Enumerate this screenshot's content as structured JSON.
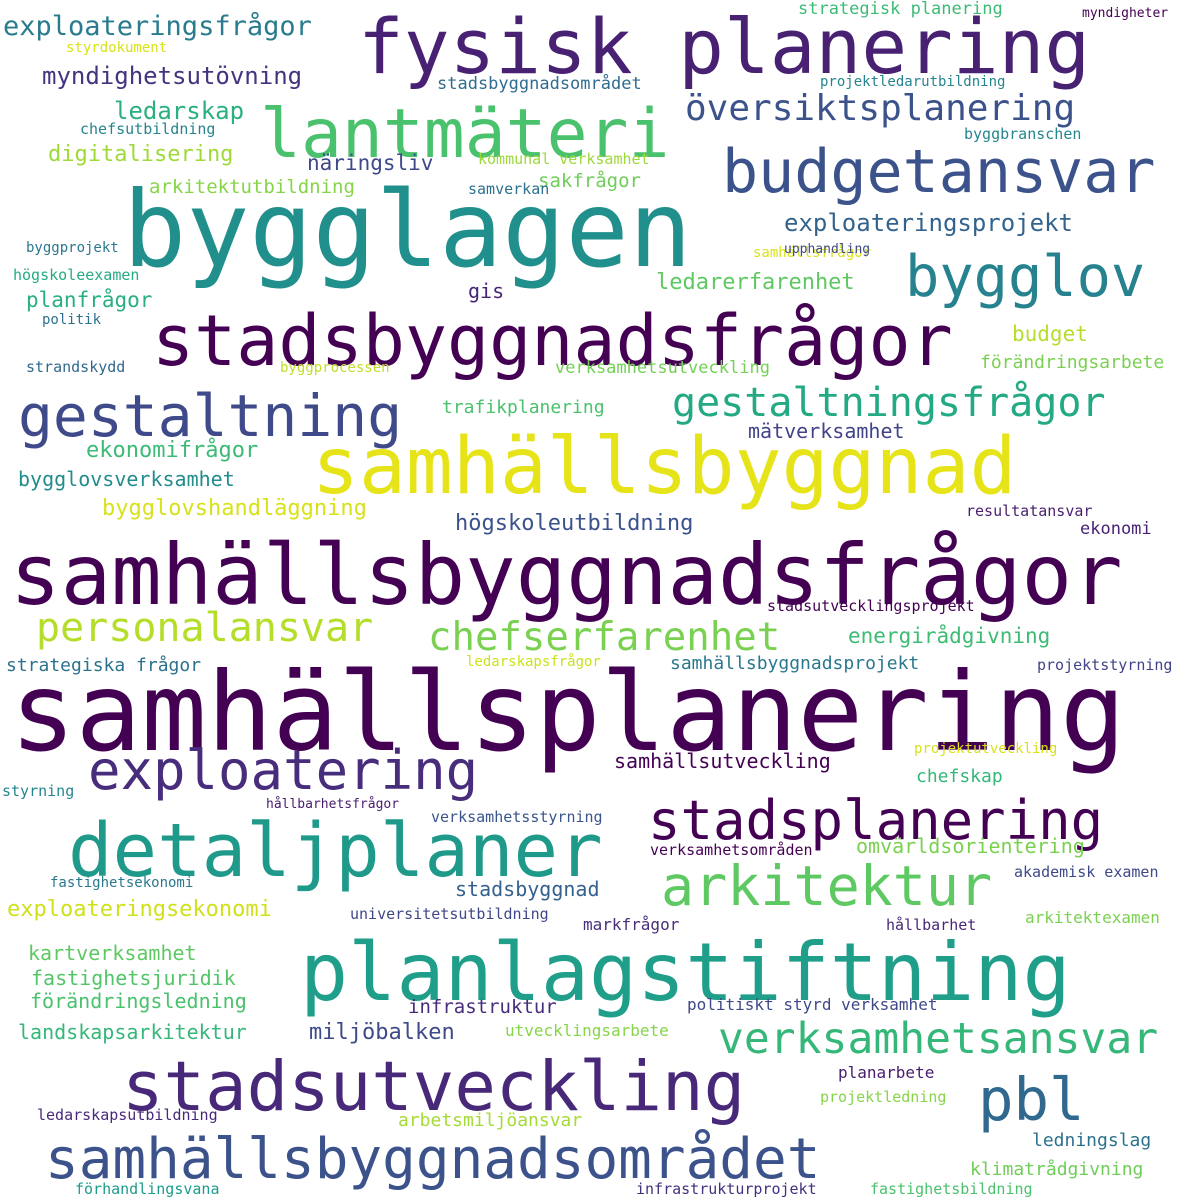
{
  "words": [
    {
      "text": "samhällsplanering",
      "color": "#440154"
    },
    {
      "text": "samhällsbyggnadsfrågor",
      "color": "#440154"
    },
    {
      "text": "bygglagen",
      "color": "#21908c"
    },
    {
      "text": "samhällsbyggnad",
      "color": "#e6e419"
    },
    {
      "text": "planlagstiftning",
      "color": "#1f9e89"
    },
    {
      "text": "fysisk planering",
      "color": "#482173"
    },
    {
      "text": "stadsbyggnadsfrågor",
      "color": "#440154"
    },
    {
      "text": "stadsutveckling",
      "color": "#482878"
    },
    {
      "text": "detaljplaner",
      "color": "#1f9a8a"
    },
    {
      "text": "lantmäteri",
      "color": "#4ac16d"
    },
    {
      "text": "samhällsbyggnadsområdet",
      "color": "#3b528b"
    },
    {
      "text": "budgetansvar",
      "color": "#3b528b"
    },
    {
      "text": "gestaltning",
      "color": "#3e4a89"
    },
    {
      "text": "exploatering",
      "color": "#472d7b"
    },
    {
      "text": "stadsplanering",
      "color": "#440154"
    },
    {
      "text": "arkitektur",
      "color": "#5ec962"
    },
    {
      "text": "bygglov",
      "color": "#26828e"
    },
    {
      "text": "pbl",
      "color": "#31688e"
    },
    {
      "text": "verksamhetsansvar",
      "color": "#35b779"
    },
    {
      "text": "gestaltningsfrågor",
      "color": "#23a983"
    },
    {
      "text": "personalansvar",
      "color": "#b5de2b"
    },
    {
      "text": "chefserfarenhet",
      "color": "#7ad151"
    },
    {
      "text": "översiktsplanering",
      "color": "#3b528b"
    },
    {
      "text": "exploateringsfrågor",
      "color": "#287c8e"
    },
    {
      "text": "myndighetsutövning",
      "color": "#46337e"
    },
    {
      "text": "exploateringsprojekt",
      "color": "#33638d"
    },
    {
      "text": "ledarskap",
      "color": "#2ab07f"
    },
    {
      "text": "digitalisering",
      "color": "#a0da39"
    },
    {
      "text": "näringsliv",
      "color": "#3e4989"
    },
    {
      "text": "arkitektutbildning",
      "color": "#86d549"
    },
    {
      "text": "sakfrågor",
      "color": "#6ece58"
    },
    {
      "text": "ledarerfarenhet",
      "color": "#5ec962"
    },
    {
      "text": "gis",
      "color": "#482475"
    },
    {
      "text": "planfrågor",
      "color": "#29af7f"
    },
    {
      "text": "budget",
      "color": "#b5de2b"
    },
    {
      "text": "förändringsarbete",
      "color": "#7ad151"
    },
    {
      "text": "verksamhetsutveckling",
      "color": "#73d056"
    },
    {
      "text": "trafikplanering",
      "color": "#4ac16d"
    },
    {
      "text": "ekonomifrågor",
      "color": "#3bbb75"
    },
    {
      "text": "mätverksamhet",
      "color": "#414487"
    },
    {
      "text": "bygglovsverksamhet",
      "color": "#228c8d"
    },
    {
      "text": "bygglovshandläggning",
      "color": "#d8e219"
    },
    {
      "text": "högskoleutbildning",
      "color": "#3b528b"
    },
    {
      "text": "resultatansvar",
      "color": "#481f70"
    },
    {
      "text": "ekonomi",
      "color": "#482374"
    },
    {
      "text": "stadsutvecklingsprojekt",
      "color": "#440154"
    },
    {
      "text": "energirådgivning",
      "color": "#3dbc74"
    },
    {
      "text": "strategiska frågor",
      "color": "#2c718e"
    },
    {
      "text": "samhällsbyggnadsprojekt",
      "color": "#2a788e"
    },
    {
      "text": "projektstyrning",
      "color": "#414487"
    },
    {
      "text": "samhällsutveckling",
      "color": "#440154"
    },
    {
      "text": "chefskap",
      "color": "#35b779"
    },
    {
      "text": "omvärldsorientering",
      "color": "#7ad151"
    },
    {
      "text": "stadsbyggnad",
      "color": "#34618d"
    },
    {
      "text": "exploateringsekonomi",
      "color": "#d0e11c"
    },
    {
      "text": "kartverksamhet",
      "color": "#5ec962"
    },
    {
      "text": "fastighetsjuridik",
      "color": "#52c569"
    },
    {
      "text": "förändringsledning",
      "color": "#4ac16d"
    },
    {
      "text": "infrastruktur",
      "color": "#472c7a"
    },
    {
      "text": "politiskt styrd verksamhet",
      "color": "#3e4989"
    },
    {
      "text": "landskapsarkitektur",
      "color": "#35b779"
    },
    {
      "text": "miljöbalken",
      "color": "#3e4a89"
    },
    {
      "text": "utvecklingsarbete",
      "color": "#86d549"
    },
    {
      "text": "akademisk examen",
      "color": "#3e4989"
    },
    {
      "text": "arkitektexamen",
      "color": "#7ad151"
    },
    {
      "text": "hållbarhet",
      "color": "#482878"
    },
    {
      "text": "markfrågor",
      "color": "#472d7b"
    },
    {
      "text": "universitetsutbildning",
      "color": "#3f4788"
    },
    {
      "text": "planarbete",
      "color": "#481c6e"
    },
    {
      "text": "projektledning",
      "color": "#86d549"
    },
    {
      "text": "arbetsmiljöansvar",
      "color": "#a5db36"
    },
    {
      "text": "ledningslag",
      "color": "#2c728e"
    },
    {
      "text": "klimatrådgivning",
      "color": "#6ece58"
    },
    {
      "text": "ledarskapsutbildning",
      "color": "#482979"
    },
    {
      "text": "förhandlingsvana",
      "color": "#1e9b8a"
    },
    {
      "text": "infrastrukturprojekt",
      "color": "#46307e"
    },
    {
      "text": "fastighetsbildning",
      "color": "#4ac16d"
    },
    {
      "text": "styrdokument",
      "color": "#d8e219"
    },
    {
      "text": "stadsbyggnadsområdet",
      "color": "#2f6c8e"
    },
    {
      "text": "chefsutbildning",
      "color": "#25848e"
    },
    {
      "text": "kommunal verksamhet",
      "color": "#9dd93b"
    },
    {
      "text": "samverkan",
      "color": "#2c718e"
    },
    {
      "text": "strategisk planering",
      "color": "#3bbb75"
    },
    {
      "text": "myndigheter",
      "color": "#440154"
    },
    {
      "text": "projektledarutbildning",
      "color": "#25848e"
    },
    {
      "text": "byggbranschen",
      "color": "#24868e"
    },
    {
      "text": "byggprojekt",
      "color": "#2a788e"
    },
    {
      "text": "högskoleexamen",
      "color": "#25ab82"
    },
    {
      "text": "politik",
      "color": "#2c718e"
    },
    {
      "text": "strandskydd",
      "color": "#31688e"
    },
    {
      "text": "byggprocessen",
      "color": "#c0df25"
    },
    {
      "text": "samhällsfrågor",
      "color": "#d8e219"
    },
    {
      "text": "upphandling",
      "color": "#3f4788"
    },
    {
      "text": "ledarskapsfrågor",
      "color": "#cde11d"
    },
    {
      "text": "projektutveckling",
      "color": "#d8e219"
    },
    {
      "text": "styrning",
      "color": "#24868e"
    },
    {
      "text": "hållbarhetsfrågor",
      "color": "#481c6e"
    },
    {
      "text": "verksamhetsstyrning",
      "color": "#39568c"
    },
    {
      "text": "verksamhetsområden",
      "color": "#440154"
    },
    {
      "text": "fastighetsekonomi",
      "color": "#2a788e"
    }
  ]
}
